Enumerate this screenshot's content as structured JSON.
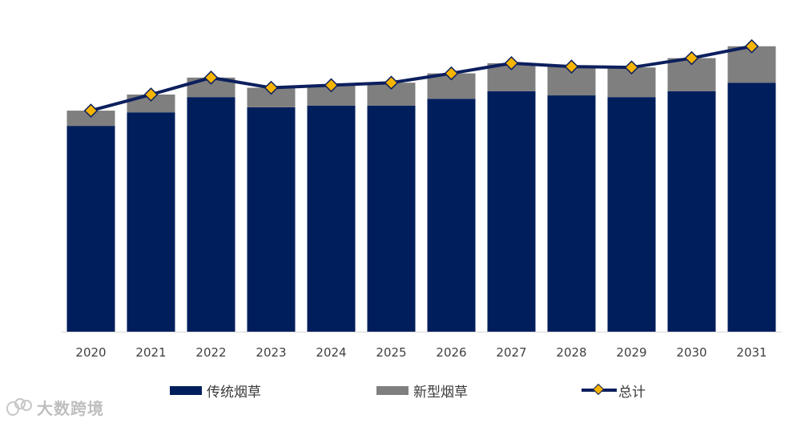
{
  "chart_data": {
    "type": "bar",
    "stacked": true,
    "categories": [
      "2020",
      "2021",
      "2022",
      "2023",
      "2024",
      "2025",
      "2026",
      "2027",
      "2028",
      "2029",
      "2030",
      "2031"
    ],
    "series": [
      {
        "name": "传统烟草",
        "type": "bar",
        "color": "#001e5c",
        "values": [
          243,
          259,
          277,
          265,
          267,
          267,
          275,
          284,
          279,
          277,
          284,
          294
        ]
      },
      {
        "name": "新型烟草",
        "type": "bar",
        "color": "#7f7f7f",
        "values": [
          18,
          21,
          23,
          23,
          24,
          27,
          30,
          33,
          34,
          35,
          39,
          43
        ]
      },
      {
        "name": "总计",
        "type": "line",
        "color": "#0c1f5e",
        "marker": "diamond",
        "marker_color": "#f5b400",
        "values": [
          261,
          280,
          300,
          288,
          291,
          294,
          305,
          317,
          313,
          312,
          323,
          337
        ]
      }
    ],
    "ylim": [
      0,
      350
    ],
    "grid": false,
    "legend": "bottom"
  },
  "watermark": {
    "text": "大数跨境"
  }
}
